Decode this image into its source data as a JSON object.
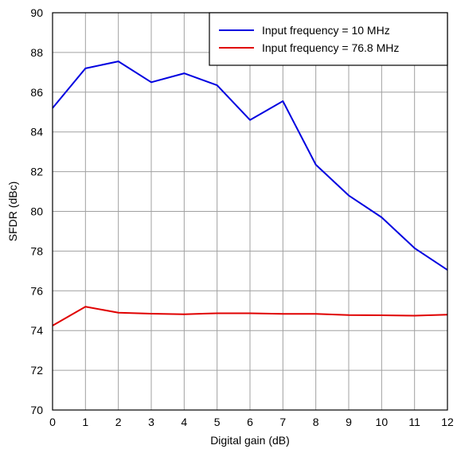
{
  "chart_data": {
    "type": "line",
    "title": "",
    "xlabel": "Digital gain (dB)",
    "ylabel": "SFDR (dBc)",
    "xlim": [
      0,
      12
    ],
    "ylim": [
      70,
      90
    ],
    "xticks": [
      0,
      1,
      2,
      3,
      4,
      5,
      6,
      7,
      8,
      9,
      10,
      11,
      12
    ],
    "yticks": [
      70,
      72,
      74,
      76,
      78,
      80,
      82,
      84,
      86,
      88,
      90
    ],
    "grid": true,
    "legend_position": "top-right",
    "x": [
      0,
      1,
      2,
      3,
      4,
      5,
      6,
      7,
      8,
      9,
      10,
      11,
      12
    ],
    "series": [
      {
        "name": "Input frequency = 10 MHz",
        "color": "#0000e0",
        "values": [
          85.2,
          87.2,
          87.55,
          86.5,
          86.95,
          86.35,
          84.6,
          85.55,
          82.35,
          80.8,
          79.7,
          78.15,
          77.05
        ]
      },
      {
        "name": "Input frequency = 76.8 MHz",
        "color": "#e00000",
        "values": [
          74.25,
          75.2,
          74.9,
          74.85,
          74.82,
          74.87,
          74.87,
          74.84,
          74.84,
          74.78,
          74.77,
          74.75,
          74.8
        ]
      }
    ]
  }
}
